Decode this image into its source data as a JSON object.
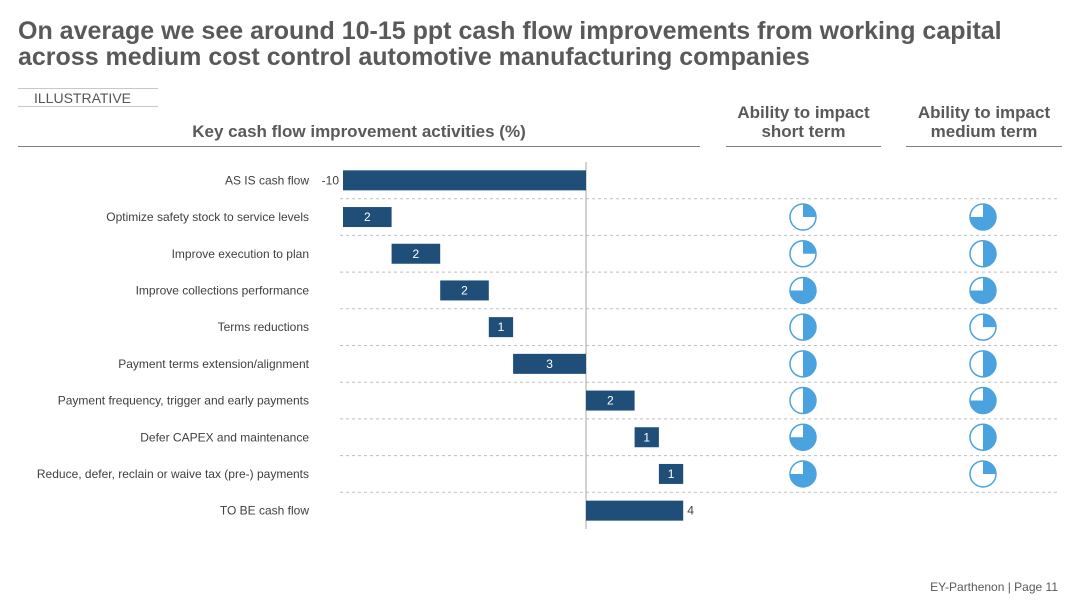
{
  "title": "On average we see around 10-15 ppt cash flow improvements from working capital across medium cost control automotive manufacturing companies",
  "tag": "ILLUSTRATIVE",
  "headers": {
    "chart": "Key cash flow improvement activities (%)",
    "short_term": "Ability to impact short term",
    "medium_term": "Ability to impact medium term"
  },
  "footer": "EY-Parthenon | Page 11",
  "colors": {
    "bar": "#1f4e79",
    "harvey": "#4aa3df",
    "grid": "#bfbfbf"
  },
  "chart_data": {
    "type": "bar",
    "subtype": "waterfall",
    "title": "Key cash flow improvement activities (%)",
    "orientation": "horizontal",
    "categories": [
      "AS IS cash flow",
      "Optimize safety stock to service levels",
      "Improve execution to plan",
      "Improve collections performance",
      "Terms reductions",
      "Payment terms extension/alignment",
      "Payment frequency, trigger and early payments",
      "Defer CAPEX and maintenance",
      "Reduce, defer, reclain or waive tax (pre-) payments",
      "TO BE cash flow"
    ],
    "values": [
      -10,
      2,
      2,
      2,
      1,
      3,
      2,
      1,
      1,
      4
    ],
    "labels": [
      "-10",
      "2",
      "2",
      "2",
      "1",
      "3",
      "2",
      "1",
      "1",
      "4"
    ],
    "kinds": [
      "total",
      "delta",
      "delta",
      "delta",
      "delta",
      "delta",
      "delta",
      "delta",
      "delta",
      "total"
    ],
    "xlim": [
      -10,
      4
    ],
    "grid": true,
    "harvey_balls": {
      "short_term": [
        null,
        0.25,
        0.25,
        0.75,
        0.5,
        0.5,
        0.5,
        0.75,
        0.75,
        null
      ],
      "medium_term": [
        null,
        0.75,
        0.5,
        0.75,
        0.25,
        0.5,
        0.75,
        0.5,
        0.25,
        null
      ]
    }
  }
}
